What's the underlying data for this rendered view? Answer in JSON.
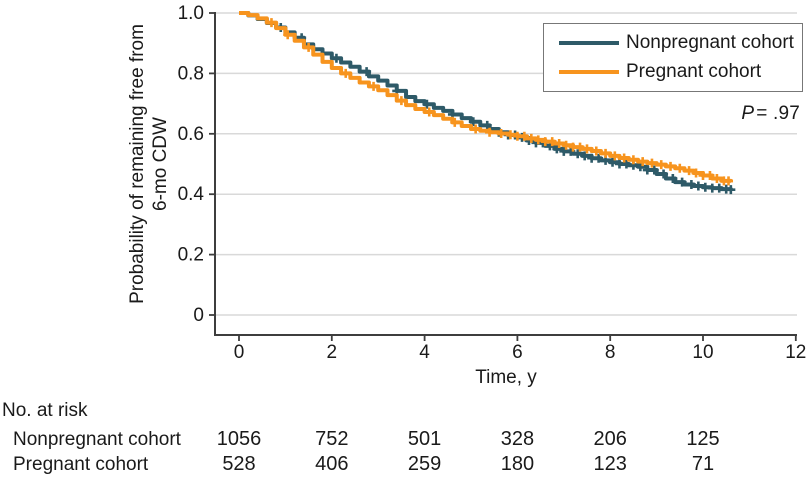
{
  "figure": {
    "y_axis_label_line1": "Probability of remaining free from",
    "y_axis_label_line2": "6-mo CDW",
    "x_axis_label": "Time, y",
    "p_label": "P",
    "p_value": "= .97"
  },
  "legend": {
    "position": "top-right",
    "items": [
      {
        "label": "Nonpregnant cohort",
        "color": "#2E5A68"
      },
      {
        "label": "Pregnant cohort",
        "color": "#F7941E"
      }
    ]
  },
  "risk_table": {
    "title": "No. at risk",
    "value_times": [
      0,
      2,
      4,
      6,
      8,
      10
    ],
    "rows": [
      {
        "label": "Nonpregnant cohort",
        "values": [
          "1056",
          "752",
          "501",
          "328",
          "206",
          "125"
        ]
      },
      {
        "label": "Pregnant cohort",
        "values": [
          "528",
          "406",
          "259",
          "180",
          "123",
          "71"
        ]
      }
    ]
  },
  "colors": {
    "nonpregnant": "#2E5A68",
    "pregnant": "#F7941E",
    "gridline": "#D9D9D9",
    "axis": "#3D3D3D",
    "text": "#1A1A1A",
    "legend_border": "#777777"
  },
  "chart_data": {
    "type": "line",
    "subtype": "kaplan-meier-step",
    "title": "",
    "xlabel": "Time, y",
    "ylabel": "Probability of remaining free from 6-mo CDW",
    "annotation": "P = .97",
    "xlim": [
      0,
      12
    ],
    "ylim": [
      0,
      1.0
    ],
    "x_ticks": [
      0,
      2,
      4,
      6,
      8,
      10,
      12
    ],
    "y_ticks": [
      0,
      0.2,
      0.4,
      0.6,
      0.8,
      1.0
    ],
    "y_tick_labels": [
      "0",
      "0.2",
      "0.4",
      "0.6",
      "0.8",
      "1.0"
    ],
    "grid": "horizontal",
    "legend_position": "top-right",
    "series": [
      {
        "name": "Nonpregnant cohort",
        "color": "#2E5A68",
        "x": [
          0,
          0.2,
          0.4,
          0.6,
          0.8,
          1.0,
          1.2,
          1.4,
          1.6,
          1.8,
          2.0,
          2.2,
          2.4,
          2.6,
          2.8,
          3.0,
          3.2,
          3.4,
          3.6,
          3.8,
          4.0,
          4.2,
          4.4,
          4.6,
          4.8,
          5.0,
          5.2,
          5.4,
          5.6,
          5.8,
          6.0,
          6.2,
          6.4,
          6.6,
          6.8,
          7.0,
          7.2,
          7.4,
          7.6,
          7.8,
          8.0,
          8.2,
          8.4,
          8.6,
          8.8,
          9.0,
          9.2,
          9.4,
          9.6,
          9.8,
          10.0,
          10.2,
          10.4,
          10.6
        ],
        "y": [
          1.0,
          0.992,
          0.98,
          0.967,
          0.952,
          0.936,
          0.918,
          0.896,
          0.88,
          0.866,
          0.85,
          0.836,
          0.822,
          0.806,
          0.79,
          0.776,
          0.76,
          0.742,
          0.722,
          0.708,
          0.698,
          0.686,
          0.676,
          0.664,
          0.652,
          0.64,
          0.628,
          0.616,
          0.605,
          0.596,
          0.588,
          0.578,
          0.57,
          0.56,
          0.55,
          0.542,
          0.534,
          0.527,
          0.519,
          0.512,
          0.506,
          0.5,
          0.496,
          0.491,
          0.48,
          0.467,
          0.452,
          0.44,
          0.432,
          0.427,
          0.423,
          0.42,
          0.417,
          0.415
        ],
        "censor_x": [
          0.9,
          1.35,
          2.1,
          2.75,
          3.4,
          4.05,
          4.6,
          5.05,
          5.35,
          5.6,
          5.8,
          5.95,
          6.1,
          6.25,
          6.4,
          6.55,
          6.7,
          6.85,
          7.0,
          7.15,
          7.3,
          7.45,
          7.6,
          7.75,
          7.9,
          8.05,
          8.2,
          8.35,
          8.5,
          8.65,
          8.8,
          8.95,
          9.15,
          9.35,
          9.55,
          9.75,
          9.9,
          10.05,
          10.2,
          10.35,
          10.5,
          10.6
        ]
      },
      {
        "name": "Pregnant cohort",
        "color": "#F7941E",
        "x": [
          0,
          0.2,
          0.4,
          0.6,
          0.8,
          1.0,
          1.2,
          1.4,
          1.6,
          1.8,
          2.0,
          2.2,
          2.4,
          2.6,
          2.8,
          3.0,
          3.2,
          3.4,
          3.6,
          3.8,
          4.0,
          4.2,
          4.4,
          4.6,
          4.8,
          5.0,
          5.2,
          5.4,
          5.6,
          5.8,
          6.0,
          6.2,
          6.4,
          6.6,
          6.8,
          7.0,
          7.2,
          7.4,
          7.6,
          7.8,
          8.0,
          8.2,
          8.4,
          8.6,
          8.8,
          9.0,
          9.2,
          9.4,
          9.6,
          9.8,
          10.0,
          10.2,
          10.4,
          10.6
        ],
        "y": [
          1.0,
          0.993,
          0.982,
          0.968,
          0.95,
          0.928,
          0.908,
          0.886,
          0.862,
          0.838,
          0.818,
          0.8,
          0.785,
          0.77,
          0.757,
          0.744,
          0.728,
          0.71,
          0.695,
          0.682,
          0.672,
          0.662,
          0.65,
          0.638,
          0.626,
          0.616,
          0.61,
          0.605,
          0.601,
          0.597,
          0.592,
          0.585,
          0.58,
          0.574,
          0.568,
          0.562,
          0.556,
          0.55,
          0.543,
          0.535,
          0.527,
          0.52,
          0.514,
          0.508,
          0.503,
          0.498,
          0.492,
          0.486,
          0.478,
          0.47,
          0.462,
          0.452,
          0.444,
          0.439
        ],
        "censor_x": [
          0.7,
          1.05,
          1.5,
          2.3,
          2.9,
          3.5,
          4.1,
          4.65,
          5.1,
          5.4,
          5.65,
          5.85,
          6.0,
          6.15,
          6.3,
          6.45,
          6.6,
          6.75,
          6.9,
          7.05,
          7.2,
          7.35,
          7.5,
          7.7,
          7.9,
          8.1,
          8.3,
          8.5,
          8.7,
          8.9,
          9.1,
          9.3,
          9.5,
          9.7,
          9.85,
          10.0,
          10.15,
          10.3,
          10.45,
          10.55
        ]
      }
    ],
    "risk_table": {
      "title": "No. at risk",
      "times": [
        0,
        2,
        4,
        6,
        8,
        10
      ],
      "rows": [
        {
          "label": "Nonpregnant cohort",
          "values": [
            1056,
            752,
            501,
            328,
            206,
            125
          ]
        },
        {
          "label": "Pregnant cohort",
          "values": [
            528,
            406,
            259,
            180,
            123,
            71
          ]
        }
      ]
    }
  }
}
